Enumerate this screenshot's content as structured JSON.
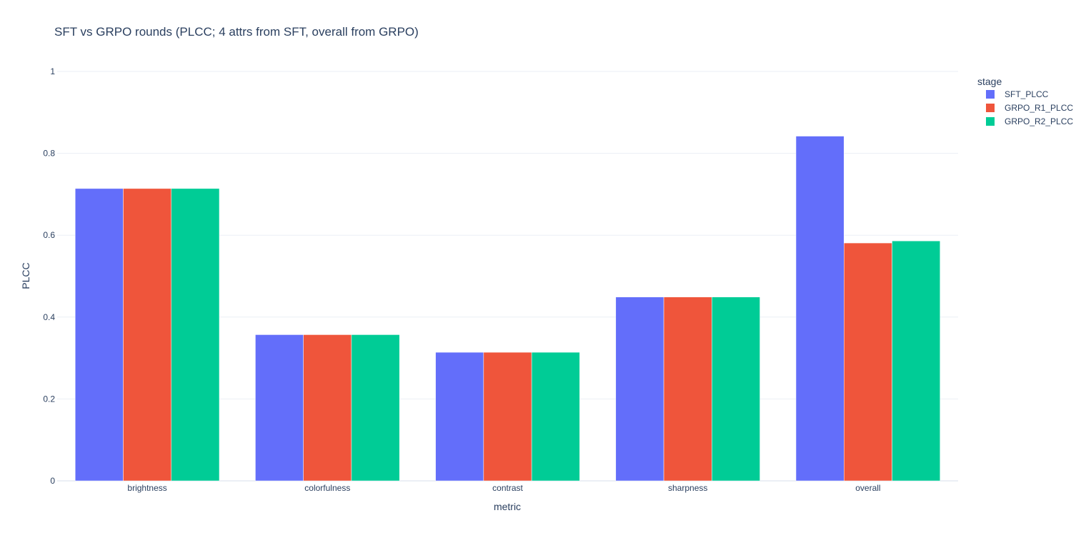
{
  "chart_data": {
    "type": "bar",
    "title": "SFT vs GRPO rounds (PLCC; 4 attrs from SFT, overall from GRPO)",
    "xlabel": "metric",
    "ylabel": "PLCC",
    "ylim": [
      0,
      1
    ],
    "yticks": [
      "0",
      "0.2",
      "0.4",
      "0.6",
      "0.8",
      "1"
    ],
    "categories": [
      "brightness",
      "colorfulness",
      "contrast",
      "sharpness",
      "overall"
    ],
    "legend_title": "stage",
    "legend_position": "top-right",
    "grid": true,
    "series": [
      {
        "name": "SFT_PLCC",
        "color": "#636efa",
        "values": [
          0.714,
          0.357,
          0.314,
          0.449,
          0.842
        ]
      },
      {
        "name": "GRPO_R1_PLCC",
        "color": "#ef553b",
        "values": [
          0.714,
          0.357,
          0.314,
          0.449,
          0.581
        ]
      },
      {
        "name": "GRPO_R2_PLCC",
        "color": "#00cc96",
        "values": [
          0.714,
          0.357,
          0.314,
          0.449,
          0.586
        ]
      }
    ]
  }
}
